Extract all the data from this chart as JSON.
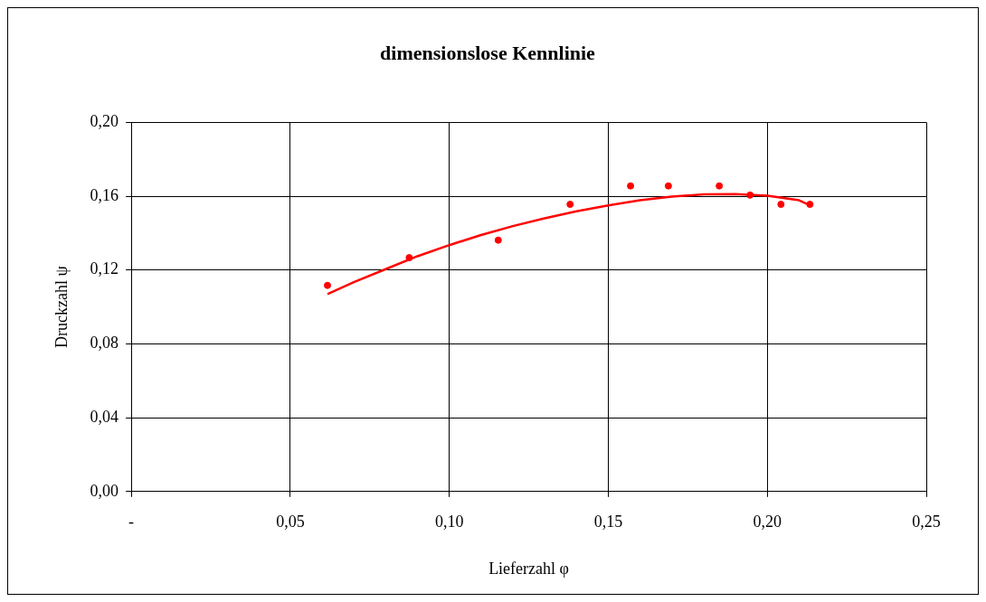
{
  "chart_data": {
    "type": "scatter",
    "title": "dimensionslose Kennlinie",
    "xlabel": "Lieferzahl φ",
    "ylabel": "Druckzahl ψ",
    "series": [
      {
        "type": "scatter",
        "marker": "circle",
        "color": "#ff0000",
        "x": [
          0.0617,
          0.0874,
          0.1154,
          0.138,
          0.157,
          0.1689,
          0.1849,
          0.1946,
          0.2043,
          0.2134
        ],
        "values": [
          0.1117,
          0.1267,
          0.1362,
          0.1556,
          0.1656,
          0.1656,
          0.1656,
          0.1606,
          0.1556,
          0.1556
        ]
      },
      {
        "type": "line",
        "marker": "none",
        "color": "#ff0000",
        "x": [
          0.0617,
          0.07,
          0.08,
          0.09,
          0.1,
          0.11,
          0.12,
          0.13,
          0.14,
          0.15,
          0.16,
          0.17,
          0.18,
          0.19,
          0.2,
          0.21,
          0.2134
        ],
        "values": [
          0.107,
          0.1135,
          0.1205,
          0.1275,
          0.1335,
          0.139,
          0.1438,
          0.148,
          0.1518,
          0.155,
          0.1578,
          0.1598,
          0.161,
          0.1612,
          0.1603,
          0.1578,
          0.1551
        ]
      }
    ],
    "xlim": [
      0,
      0.25
    ],
    "xticks": [
      {
        "value": 0,
        "label": "-"
      },
      {
        "value": 0.05,
        "label": "0,05"
      },
      {
        "value": 0.1,
        "label": "0,10"
      },
      {
        "value": 0.15,
        "label": "0,15"
      },
      {
        "value": 0.2,
        "label": "0,20"
      },
      {
        "value": 0.25,
        "label": "0,25"
      }
    ],
    "ylim": [
      0,
      0.2
    ],
    "yticks": [
      {
        "value": 0,
        "label": "0,00"
      },
      {
        "value": 0.04,
        "label": "0,04"
      },
      {
        "value": 0.08,
        "label": "0,08"
      },
      {
        "value": 0.12,
        "label": "0,12"
      },
      {
        "value": 0.16,
        "label": "0,16"
      },
      {
        "value": 0.2,
        "label": "0,20"
      }
    ],
    "grid": true,
    "legend": false,
    "line_style": "solid"
  }
}
